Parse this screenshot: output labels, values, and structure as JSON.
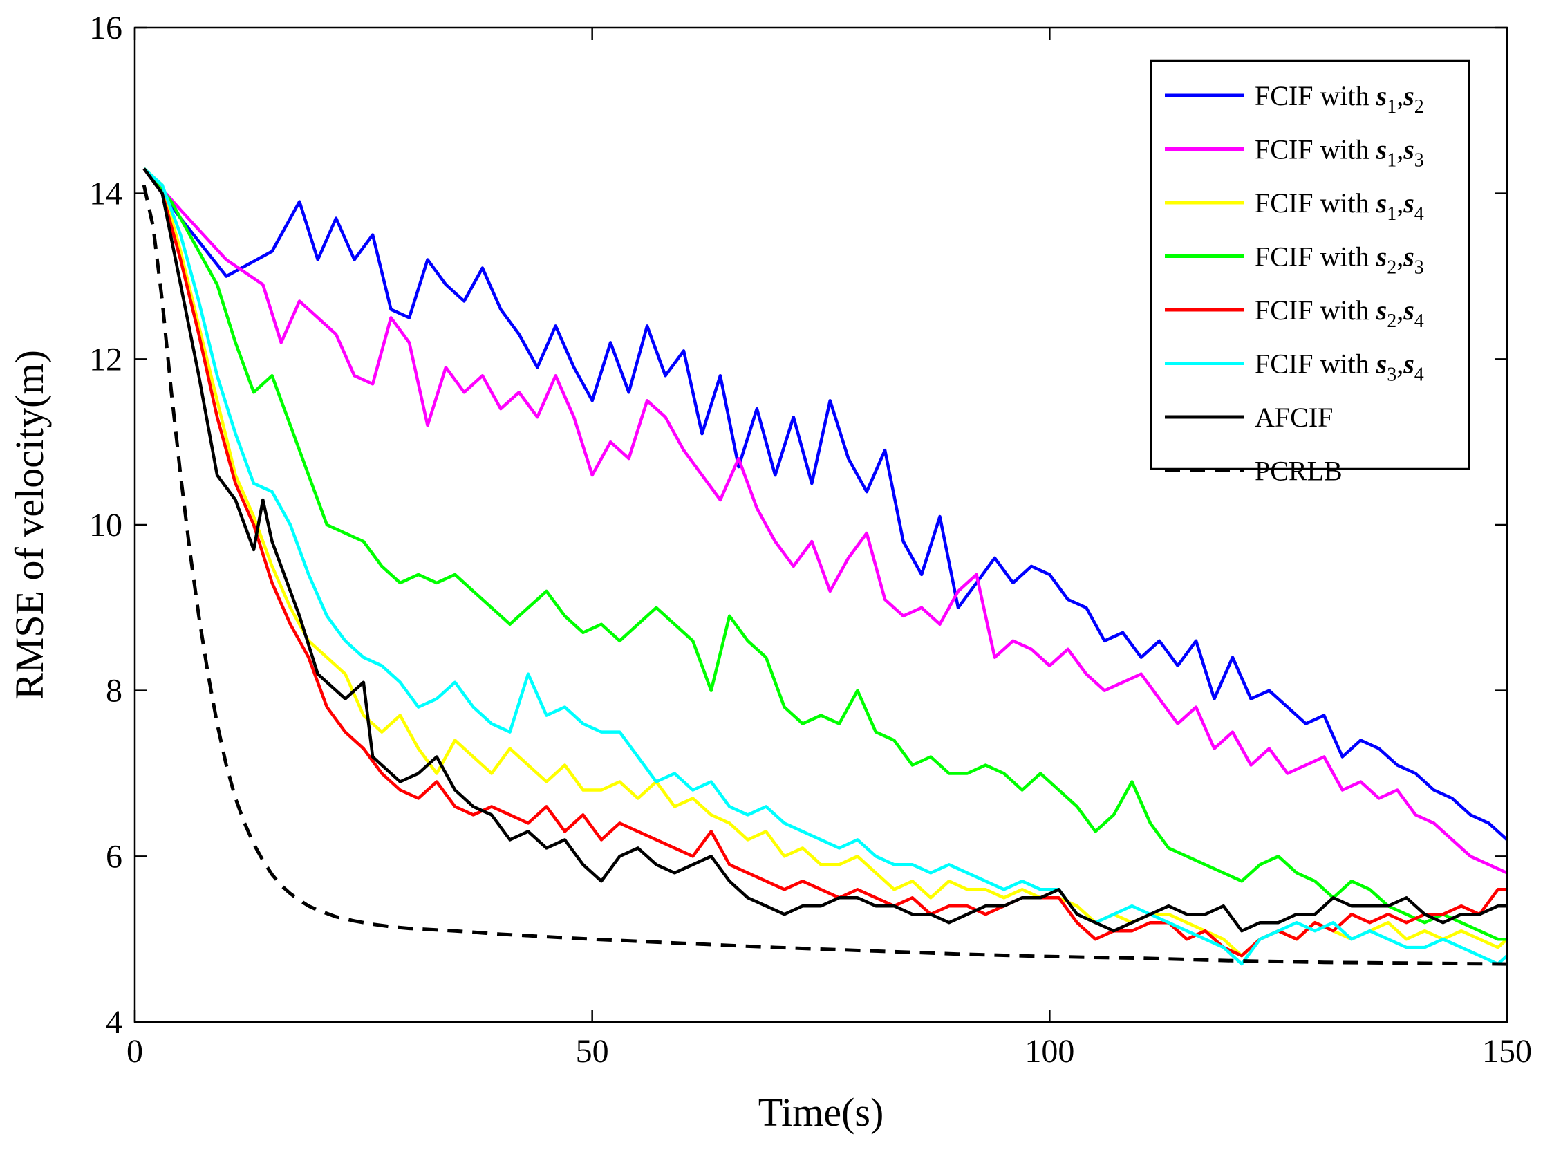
{
  "chart_data": {
    "type": "line",
    "title": "",
    "xlabel": "Time(s)",
    "ylabel": "RMSE of velocity(m)",
    "xlim": [
      0,
      150
    ],
    "ylim": [
      4,
      16
    ],
    "xticks": [
      0,
      50,
      100,
      150
    ],
    "yticks": [
      4,
      6,
      8,
      10,
      12,
      14,
      16
    ],
    "xtick_labels": [
      "0",
      "50",
      "100",
      "150"
    ],
    "ytick_labels": [
      "4",
      "6",
      "8",
      "10",
      "12",
      "14",
      "16"
    ],
    "grid": false,
    "legend_position": "top-right",
    "series": [
      {
        "name": "FCIF with s1,s2",
        "legend": {
          "prefix": "FCIF with ",
          "a": "s",
          "a_sub": "1",
          "b": "s",
          "b_sub": "2"
        },
        "color": "#0000FF",
        "dash": "solid",
        "x": [
          1,
          5,
          10,
          15,
          18,
          20,
          22,
          24,
          26,
          28,
          30,
          32,
          34,
          36,
          38,
          40,
          42,
          44,
          46,
          48,
          50,
          52,
          54,
          56,
          58,
          60,
          62,
          64,
          66,
          68,
          70,
          72,
          74,
          76,
          78,
          80,
          82,
          84,
          86,
          88,
          90,
          92,
          94,
          96,
          98,
          100,
          102,
          104,
          106,
          108,
          110,
          112,
          114,
          116,
          118,
          120,
          122,
          124,
          126,
          128,
          130,
          132,
          134,
          136,
          138,
          140,
          142,
          144,
          146,
          148,
          150
        ],
        "values": [
          14.3,
          13.7,
          13.0,
          13.3,
          13.9,
          13.2,
          13.7,
          13.2,
          13.5,
          12.6,
          12.5,
          13.2,
          12.9,
          12.7,
          13.1,
          12.6,
          12.3,
          11.9,
          12.4,
          11.9,
          11.5,
          12.2,
          11.6,
          12.4,
          11.8,
          12.1,
          11.1,
          11.8,
          10.7,
          11.4,
          10.6,
          11.3,
          10.5,
          11.5,
          10.8,
          10.4,
          10.9,
          9.8,
          9.4,
          10.1,
          9.0,
          9.3,
          9.6,
          9.3,
          9.5,
          9.4,
          9.1,
          9.0,
          8.6,
          8.7,
          8.4,
          8.6,
          8.3,
          8.6,
          7.9,
          8.4,
          7.9,
          8.0,
          7.8,
          7.6,
          7.7,
          7.2,
          7.4,
          7.3,
          7.1,
          7.0,
          6.8,
          6.7,
          6.5,
          6.4,
          6.2
        ]
      },
      {
        "name": "FCIF with s1,s3",
        "legend": {
          "prefix": "FCIF with ",
          "a": "s",
          "a_sub": "1",
          "b": "s",
          "b_sub": "3"
        },
        "color": "#FF00FF",
        "dash": "solid",
        "x": [
          1,
          5,
          10,
          14,
          16,
          18,
          20,
          22,
          24,
          26,
          28,
          30,
          32,
          34,
          36,
          38,
          40,
          42,
          44,
          46,
          48,
          50,
          52,
          54,
          56,
          58,
          60,
          62,
          64,
          66,
          68,
          70,
          72,
          74,
          76,
          78,
          80,
          82,
          84,
          86,
          88,
          90,
          92,
          94,
          96,
          98,
          100,
          102,
          104,
          106,
          108,
          110,
          112,
          114,
          116,
          118,
          120,
          122,
          124,
          126,
          128,
          130,
          132,
          134,
          136,
          138,
          140,
          142,
          144,
          146,
          148,
          150
        ],
        "values": [
          14.3,
          13.8,
          13.2,
          12.9,
          12.2,
          12.7,
          12.5,
          12.3,
          11.8,
          11.7,
          12.5,
          12.2,
          11.2,
          11.9,
          11.6,
          11.8,
          11.4,
          11.6,
          11.3,
          11.8,
          11.3,
          10.6,
          11.0,
          10.8,
          11.5,
          11.3,
          10.9,
          10.6,
          10.3,
          10.8,
          10.2,
          9.8,
          9.5,
          9.8,
          9.2,
          9.6,
          9.9,
          9.1,
          8.9,
          9.0,
          8.8,
          9.2,
          9.4,
          8.4,
          8.6,
          8.5,
          8.3,
          8.5,
          8.2,
          8.0,
          8.1,
          8.2,
          7.9,
          7.6,
          7.8,
          7.3,
          7.5,
          7.1,
          7.3,
          7.0,
          7.1,
          7.2,
          6.8,
          6.9,
          6.7,
          6.8,
          6.5,
          6.4,
          6.2,
          6.0,
          5.9,
          5.8
        ]
      },
      {
        "name": "FCIF with s1,s4",
        "legend": {
          "prefix": "FCIF with ",
          "a": "s",
          "a_sub": "1",
          "b": "s",
          "b_sub": "4"
        },
        "color": "#FFFF00",
        "dash": "solid",
        "x": [
          1,
          3,
          5,
          7,
          9,
          11,
          13,
          15,
          17,
          19,
          21,
          23,
          25,
          27,
          29,
          31,
          33,
          35,
          37,
          39,
          41,
          43,
          45,
          47,
          49,
          51,
          53,
          55,
          57,
          59,
          61,
          63,
          65,
          67,
          69,
          71,
          73,
          75,
          77,
          79,
          81,
          83,
          85,
          87,
          89,
          91,
          93,
          95,
          97,
          99,
          101,
          103,
          105,
          107,
          109,
          111,
          113,
          115,
          117,
          119,
          121,
          123,
          125,
          127,
          129,
          131,
          133,
          135,
          137,
          139,
          141,
          143,
          145,
          147,
          149,
          150
        ],
        "values": [
          14.3,
          14.1,
          13.3,
          12.4,
          11.5,
          10.6,
          10.1,
          9.5,
          9.0,
          8.6,
          8.4,
          8.2,
          7.7,
          7.5,
          7.7,
          7.3,
          7.0,
          7.4,
          7.2,
          7.0,
          7.3,
          7.1,
          6.9,
          7.1,
          6.8,
          6.8,
          6.9,
          6.7,
          6.9,
          6.6,
          6.7,
          6.5,
          6.4,
          6.2,
          6.3,
          6.0,
          6.1,
          5.9,
          5.9,
          6.0,
          5.8,
          5.6,
          5.7,
          5.5,
          5.7,
          5.6,
          5.6,
          5.5,
          5.6,
          5.5,
          5.5,
          5.4,
          5.2,
          5.3,
          5.2,
          5.3,
          5.3,
          5.2,
          5.1,
          5.0,
          4.8,
          5.0,
          5.1,
          5.0,
          5.2,
          5.1,
          5.0,
          5.1,
          5.2,
          5.0,
          5.1,
          5.0,
          5.1,
          5.0,
          4.9,
          5.0
        ]
      },
      {
        "name": "FCIF with s2,s3",
        "legend": {
          "prefix": "FCIF with ",
          "a": "s",
          "a_sub": "2",
          "b": "s",
          "b_sub": "3"
        },
        "color": "#00FF00",
        "dash": "solid",
        "x": [
          1,
          4,
          7,
          9,
          11,
          13,
          15,
          17,
          19,
          21,
          23,
          25,
          27,
          29,
          31,
          33,
          35,
          37,
          39,
          41,
          43,
          45,
          47,
          49,
          51,
          53,
          55,
          57,
          59,
          61,
          63,
          65,
          67,
          69,
          71,
          73,
          75,
          77,
          79,
          81,
          83,
          85,
          87,
          89,
          91,
          93,
          95,
          97,
          99,
          101,
          103,
          105,
          107,
          109,
          111,
          113,
          115,
          117,
          119,
          121,
          123,
          125,
          127,
          129,
          131,
          133,
          135,
          137,
          139,
          141,
          143,
          145,
          147,
          149,
          150
        ],
        "values": [
          14.3,
          13.9,
          13.3,
          12.9,
          12.2,
          11.6,
          11.8,
          11.2,
          10.6,
          10.0,
          9.9,
          9.8,
          9.5,
          9.3,
          9.4,
          9.3,
          9.4,
          9.2,
          9.0,
          8.8,
          9.0,
          9.2,
          8.9,
          8.7,
          8.8,
          8.6,
          8.8,
          9.0,
          8.8,
          8.6,
          8.0,
          8.9,
          8.6,
          8.4,
          7.8,
          7.6,
          7.7,
          7.6,
          8.0,
          7.5,
          7.4,
          7.1,
          7.2,
          7.0,
          7.0,
          7.1,
          7.0,
          6.8,
          7.0,
          6.8,
          6.6,
          6.3,
          6.5,
          6.9,
          6.4,
          6.1,
          6.0,
          5.9,
          5.8,
          5.7,
          5.9,
          6.0,
          5.8,
          5.7,
          5.5,
          5.7,
          5.6,
          5.4,
          5.3,
          5.2,
          5.3,
          5.2,
          5.1,
          5.0,
          5.0
        ]
      },
      {
        "name": "FCIF with s2,s4",
        "legend": {
          "prefix": "FCIF with ",
          "a": "s",
          "a_sub": "2",
          "b": "s",
          "b_sub": "4"
        },
        "color": "#FF0000",
        "dash": "solid",
        "x": [
          1,
          3,
          5,
          7,
          9,
          11,
          13,
          15,
          17,
          19,
          21,
          23,
          25,
          27,
          29,
          31,
          33,
          35,
          37,
          39,
          41,
          43,
          45,
          47,
          49,
          51,
          53,
          55,
          57,
          59,
          61,
          63,
          65,
          67,
          69,
          71,
          73,
          75,
          77,
          79,
          81,
          83,
          85,
          87,
          89,
          91,
          93,
          95,
          97,
          99,
          101,
          103,
          105,
          107,
          109,
          111,
          113,
          115,
          117,
          119,
          121,
          123,
          125,
          127,
          129,
          131,
          133,
          135,
          137,
          139,
          141,
          143,
          145,
          147,
          149,
          150
        ],
        "values": [
          14.3,
          14.0,
          13.2,
          12.3,
          11.3,
          10.5,
          10.0,
          9.3,
          8.8,
          8.4,
          7.8,
          7.5,
          7.3,
          7.0,
          6.8,
          6.7,
          6.9,
          6.6,
          6.5,
          6.6,
          6.5,
          6.4,
          6.6,
          6.3,
          6.5,
          6.2,
          6.4,
          6.3,
          6.2,
          6.1,
          6.0,
          6.3,
          5.9,
          5.8,
          5.7,
          5.6,
          5.7,
          5.6,
          5.5,
          5.6,
          5.5,
          5.4,
          5.5,
          5.3,
          5.4,
          5.4,
          5.3,
          5.4,
          5.5,
          5.5,
          5.5,
          5.2,
          5.0,
          5.1,
          5.1,
          5.2,
          5.2,
          5.0,
          5.1,
          4.9,
          4.8,
          5.0,
          5.1,
          5.0,
          5.2,
          5.1,
          5.3,
          5.2,
          5.3,
          5.2,
          5.3,
          5.3,
          5.4,
          5.3,
          5.6,
          5.6
        ]
      },
      {
        "name": "FCIF with s3,s4",
        "legend": {
          "prefix": "FCIF with ",
          "a": "s",
          "a_sub": "3",
          "b": "s",
          "b_sub": "4"
        },
        "color": "#00FFFF",
        "dash": "solid",
        "x": [
          1,
          3,
          5,
          7,
          9,
          11,
          13,
          15,
          17,
          19,
          21,
          23,
          25,
          27,
          29,
          31,
          33,
          35,
          37,
          39,
          41,
          43,
          45,
          47,
          49,
          51,
          53,
          55,
          57,
          59,
          61,
          63,
          65,
          67,
          69,
          71,
          73,
          75,
          77,
          79,
          81,
          83,
          85,
          87,
          89,
          91,
          93,
          95,
          97,
          99,
          101,
          103,
          105,
          107,
          109,
          111,
          113,
          115,
          117,
          119,
          121,
          123,
          125,
          127,
          129,
          131,
          133,
          135,
          137,
          139,
          141,
          143,
          145,
          147,
          149,
          150
        ],
        "values": [
          14.3,
          14.1,
          13.5,
          12.7,
          11.8,
          11.1,
          10.5,
          10.4,
          10.0,
          9.4,
          8.9,
          8.6,
          8.4,
          8.3,
          8.1,
          7.8,
          7.9,
          8.1,
          7.8,
          7.6,
          7.5,
          8.2,
          7.7,
          7.8,
          7.6,
          7.5,
          7.5,
          7.2,
          6.9,
          7.0,
          6.8,
          6.9,
          6.6,
          6.5,
          6.6,
          6.4,
          6.3,
          6.2,
          6.1,
          6.2,
          6.0,
          5.9,
          5.9,
          5.8,
          5.9,
          5.8,
          5.7,
          5.6,
          5.7,
          5.6,
          5.6,
          5.3,
          5.2,
          5.3,
          5.4,
          5.3,
          5.2,
          5.1,
          5.0,
          4.9,
          4.7,
          5.0,
          5.1,
          5.2,
          5.1,
          5.2,
          5.0,
          5.1,
          5.0,
          4.9,
          4.9,
          5.0,
          4.9,
          4.8,
          4.7,
          4.8
        ]
      },
      {
        "name": "AFCIF",
        "legend": {
          "prefix": "AFCIF",
          "a": "",
          "a_sub": "",
          "b": "",
          "b_sub": ""
        },
        "color": "#000000",
        "dash": "solid",
        "x": [
          1,
          3,
          5,
          7,
          9,
          11,
          13,
          14,
          15,
          16,
          18,
          20,
          21,
          23,
          25,
          26,
          27,
          29,
          31,
          33,
          35,
          37,
          39,
          41,
          43,
          45,
          47,
          49,
          51,
          53,
          55,
          57,
          59,
          61,
          63,
          65,
          67,
          69,
          71,
          73,
          75,
          77,
          79,
          81,
          83,
          85,
          87,
          89,
          91,
          93,
          95,
          97,
          99,
          101,
          103,
          105,
          107,
          109,
          111,
          113,
          115,
          117,
          119,
          121,
          123,
          125,
          127,
          129,
          131,
          133,
          135,
          137,
          139,
          141,
          143,
          145,
          147,
          149,
          150
        ],
        "values": [
          14.3,
          14.0,
          12.9,
          11.8,
          10.6,
          10.3,
          9.7,
          10.3,
          9.8,
          9.5,
          8.9,
          8.2,
          8.1,
          7.9,
          8.1,
          7.2,
          7.1,
          6.9,
          7.0,
          7.2,
          6.8,
          6.6,
          6.5,
          6.2,
          6.3,
          6.1,
          6.2,
          5.9,
          5.7,
          6.0,
          6.1,
          5.9,
          5.8,
          5.9,
          6.0,
          5.7,
          5.5,
          5.4,
          5.3,
          5.4,
          5.4,
          5.5,
          5.5,
          5.4,
          5.4,
          5.3,
          5.3,
          5.2,
          5.3,
          5.4,
          5.4,
          5.5,
          5.5,
          5.6,
          5.3,
          5.2,
          5.1,
          5.2,
          5.3,
          5.4,
          5.3,
          5.3,
          5.4,
          5.1,
          5.2,
          5.2,
          5.3,
          5.3,
          5.5,
          5.4,
          5.4,
          5.4,
          5.5,
          5.3,
          5.2,
          5.3,
          5.3,
          5.4,
          5.4
        ]
      },
      {
        "name": "PCRLB",
        "legend": {
          "prefix": "PCRLB",
          "a": "",
          "a_sub": "",
          "b": "",
          "b_sub": ""
        },
        "color": "#000000",
        "dash": "dashed",
        "x": [
          1,
          2,
          3,
          4,
          5,
          6,
          7,
          8,
          9,
          10,
          11,
          12,
          13,
          14,
          15,
          16,
          17,
          18,
          19,
          20,
          22,
          24,
          26,
          28,
          30,
          35,
          40,
          50,
          60,
          70,
          80,
          90,
          100,
          110,
          120,
          130,
          140,
          150
        ],
        "values": [
          14.1,
          13.6,
          12.7,
          11.6,
          10.6,
          9.7,
          8.9,
          8.2,
          7.6,
          7.1,
          6.7,
          6.4,
          6.15,
          5.95,
          5.78,
          5.65,
          5.55,
          5.47,
          5.4,
          5.35,
          5.27,
          5.22,
          5.18,
          5.15,
          5.13,
          5.1,
          5.06,
          5.0,
          4.95,
          4.9,
          4.86,
          4.82,
          4.79,
          4.77,
          4.74,
          4.72,
          4.71,
          4.7
        ]
      }
    ]
  }
}
